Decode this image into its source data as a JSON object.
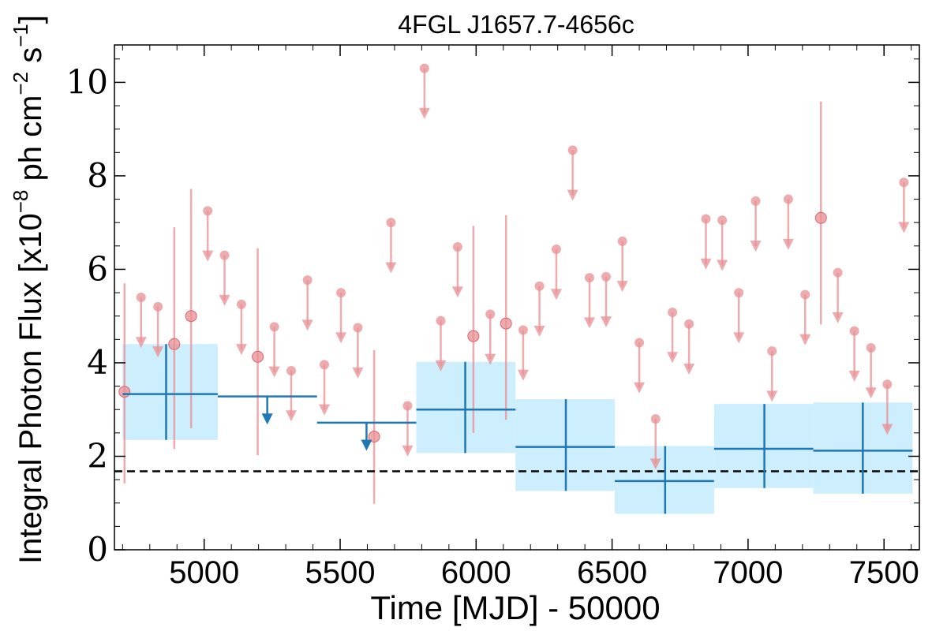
{
  "chart_data": {
    "type": "scatter",
    "title": "4FGL J1657.7-4656c",
    "xlabel": "Time [MJD] - 50000",
    "ylabel_main": "Integral Photon Flux [x10",
    "ylabel_exp1": "−8",
    "ylabel_mid": " ph cm",
    "ylabel_exp2": "−2",
    "ylabel_s": " s",
    "ylabel_exp3": "−1",
    "ylabel_end": "]",
    "xlim": [
      4670,
      7630
    ],
    "ylim": [
      0,
      10.8
    ],
    "xticks": [
      5000,
      5500,
      6000,
      6500,
      7000,
      7500
    ],
    "xtick_labels": [
      "5000",
      "5500",
      "6000",
      "6500",
      "7000",
      "7500"
    ],
    "yticks": [
      0,
      2,
      4,
      6,
      8,
      10
    ],
    "ytick_labels": [
      "0",
      "2",
      "4",
      "6",
      "8",
      "10"
    ],
    "reference_level": 1.68,
    "colors": {
      "fine": "#e88f93",
      "coarse": "#1f77b4",
      "band": "#cdeefc",
      "reference": "#000000"
    },
    "series": [
      {
        "kind": "fine-bin detections",
        "points": [
          {
            "x": 4707,
            "y": 3.38,
            "lo": 1.42,
            "hi": 5.7
          },
          {
            "x": 4890,
            "y": 4.4,
            "lo": 2.16,
            "hi": 6.9
          },
          {
            "x": 4952,
            "y": 5.0,
            "lo": 2.6,
            "hi": 7.72
          },
          {
            "x": 5197,
            "y": 4.13,
            "lo": 2.02,
            "hi": 6.45
          },
          {
            "x": 5625,
            "y": 2.42,
            "lo": 0.98,
            "hi": 4.27
          },
          {
            "x": 5990,
            "y": 4.57,
            "lo": 2.5,
            "hi": 6.93
          },
          {
            "x": 6110,
            "y": 4.84,
            "lo": 2.78,
            "hi": 7.16
          },
          {
            "x": 7268,
            "y": 7.1,
            "lo": 4.82,
            "hi": 9.59
          }
        ]
      },
      {
        "kind": "fine-bin upper limits",
        "points": [
          {
            "x": 4768,
            "y": 5.4
          },
          {
            "x": 4830,
            "y": 5.2
          },
          {
            "x": 5013,
            "y": 7.25
          },
          {
            "x": 5075,
            "y": 6.3
          },
          {
            "x": 5137,
            "y": 5.25
          },
          {
            "x": 5258,
            "y": 4.77
          },
          {
            "x": 5320,
            "y": 3.83
          },
          {
            "x": 5380,
            "y": 5.77
          },
          {
            "x": 5442,
            "y": 3.96
          },
          {
            "x": 5503,
            "y": 5.5
          },
          {
            "x": 5565,
            "y": 4.75
          },
          {
            "x": 5687,
            "y": 7.0
          },
          {
            "x": 5748,
            "y": 3.08
          },
          {
            "x": 5810,
            "y": 10.3
          },
          {
            "x": 5870,
            "y": 4.9
          },
          {
            "x": 5932,
            "y": 6.48
          },
          {
            "x": 6052,
            "y": 5.04
          },
          {
            "x": 6173,
            "y": 4.7
          },
          {
            "x": 6233,
            "y": 5.64
          },
          {
            "x": 6295,
            "y": 6.43
          },
          {
            "x": 6355,
            "y": 8.55
          },
          {
            "x": 6417,
            "y": 5.82
          },
          {
            "x": 6478,
            "y": 5.84
          },
          {
            "x": 6538,
            "y": 6.6
          },
          {
            "x": 6600,
            "y": 4.43
          },
          {
            "x": 6660,
            "y": 2.8
          },
          {
            "x": 6722,
            "y": 5.08
          },
          {
            "x": 6783,
            "y": 4.83
          },
          {
            "x": 6845,
            "y": 7.08
          },
          {
            "x": 6905,
            "y": 7.05
          },
          {
            "x": 6966,
            "y": 5.5
          },
          {
            "x": 7028,
            "y": 7.46
          },
          {
            "x": 7088,
            "y": 4.25
          },
          {
            "x": 7148,
            "y": 7.5
          },
          {
            "x": 7210,
            "y": 5.46
          },
          {
            "x": 7330,
            "y": 5.93
          },
          {
            "x": 7391,
            "y": 4.68
          },
          {
            "x": 7452,
            "y": 4.32
          },
          {
            "x": 7512,
            "y": 3.54
          },
          {
            "x": 7573,
            "y": 7.86
          }
        ]
      },
      {
        "kind": "coarse-bin detections",
        "bins": [
          {
            "x0": 4700,
            "x1": 5050,
            "y": 3.33,
            "lo": 2.35,
            "hi": 4.4,
            "xc": 4860
          },
          {
            "x0": 5780,
            "x1": 6145,
            "y": 3.0,
            "lo": 2.07,
            "hi": 4.02,
            "xc": 5960
          },
          {
            "x0": 6145,
            "x1": 6510,
            "y": 2.2,
            "lo": 1.26,
            "hi": 3.22,
            "xc": 6330
          },
          {
            "x0": 6510,
            "x1": 6875,
            "y": 1.47,
            "lo": 0.77,
            "hi": 2.22,
            "xc": 6695
          },
          {
            "x0": 6875,
            "x1": 7240,
            "y": 2.16,
            "lo": 1.32,
            "hi": 3.12,
            "xc": 7060
          },
          {
            "x0": 7240,
            "x1": 7605,
            "y": 2.12,
            "lo": 1.2,
            "hi": 3.15,
            "xc": 7422
          }
        ]
      },
      {
        "kind": "coarse-bin upper limits",
        "bins": [
          {
            "x0": 5050,
            "x1": 5415,
            "y": 3.28,
            "xa": 5232
          },
          {
            "x0": 5415,
            "x1": 5780,
            "y": 2.72,
            "xa": 5597
          }
        ]
      }
    ]
  }
}
